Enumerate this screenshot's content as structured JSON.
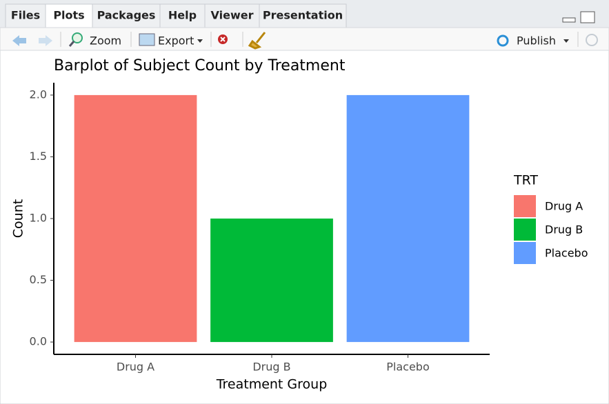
{
  "tabs": [
    "Files",
    "Plots",
    "Packages",
    "Help",
    "Viewer",
    "Presentation"
  ],
  "toolbar": {
    "zoom": "Zoom",
    "export": "Export",
    "publish": "Publish"
  },
  "chart_data": {
    "type": "bar",
    "title": "Barplot of Subject Count by Treatment",
    "x_label": "Treatment Group",
    "y_label": "Count",
    "categories": [
      "Drug A",
      "Drug B",
      "Placebo"
    ],
    "values": [
      2,
      1,
      2
    ],
    "colors": [
      "#F8766D",
      "#00BA38",
      "#619CFF"
    ],
    "legend_title": "TRT",
    "legend_position": "right",
    "ylim": [
      -0.1,
      2.1
    ],
    "yticks": [
      {
        "value": 0,
        "label": "0.0"
      },
      {
        "value": 0.5,
        "label": "0.5"
      },
      {
        "value": 1,
        "label": "1.0"
      },
      {
        "value": 1.5,
        "label": "1.5"
      },
      {
        "value": 2,
        "label": "2.0"
      }
    ],
    "grid": false
  }
}
